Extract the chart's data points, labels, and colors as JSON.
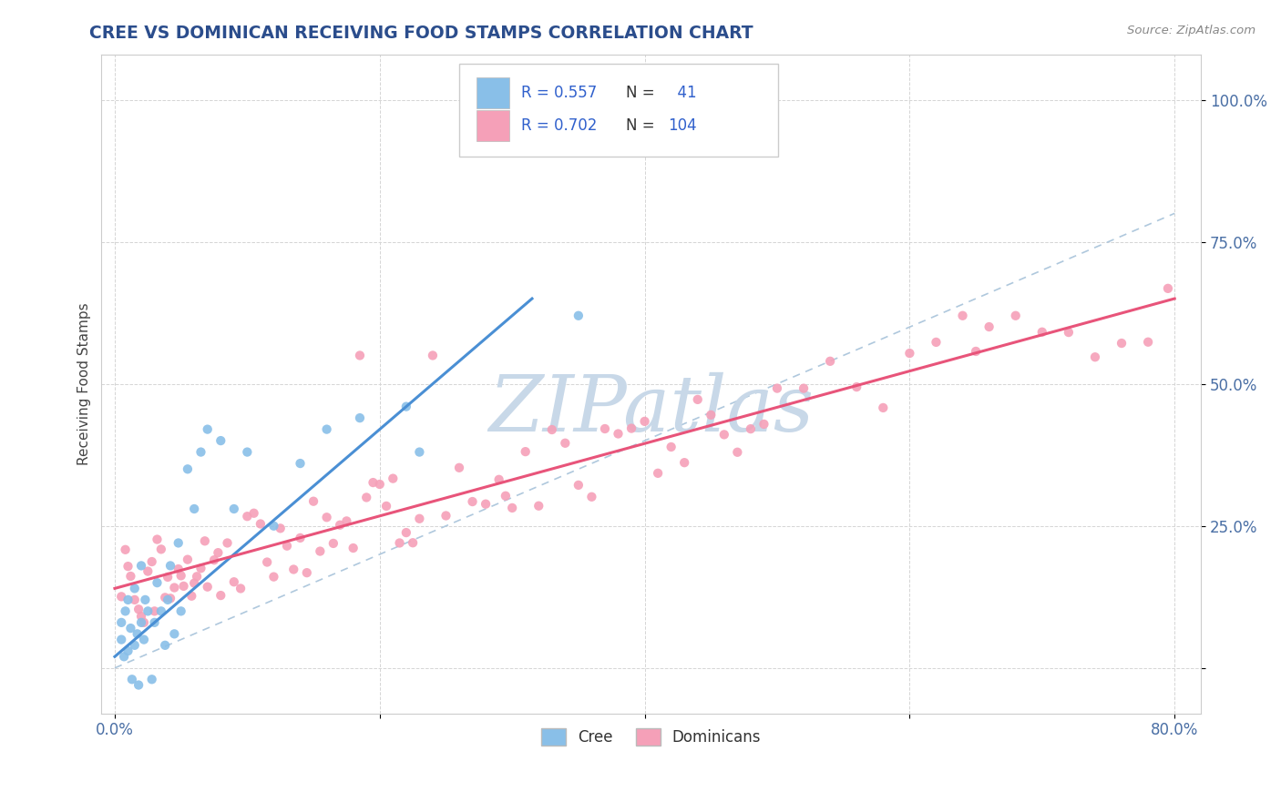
{
  "title": "CREE VS DOMINICAN RECEIVING FOOD STAMPS CORRELATION CHART",
  "source": "Source: ZipAtlas.com",
  "ylabel": "Receiving Food Stamps",
  "xlim": [
    -0.01,
    0.82
  ],
  "ylim": [
    -0.08,
    1.08
  ],
  "xticks": [
    0.0,
    0.2,
    0.4,
    0.6,
    0.8
  ],
  "xticklabels": [
    "0.0%",
    "",
    "",
    "",
    "80.0%"
  ],
  "yticks": [
    0.0,
    0.25,
    0.5,
    0.75,
    1.0
  ],
  "yticklabels_right": [
    "",
    "25.0%",
    "50.0%",
    "75.0%",
    "100.0%"
  ],
  "cree_color": "#89bfe8",
  "dominican_color": "#f5a0b8",
  "cree_line_color": "#4a8fd4",
  "dominican_line_color": "#e8547a",
  "diagonal_color": "#afc8dd",
  "legend_R_cree": "0.557",
  "legend_N_cree": "41",
  "legend_R_dominican": "0.702",
  "legend_N_dominican": "104",
  "legend_label_cree": "Cree",
  "legend_label_dominican": "Dominicans",
  "title_color": "#2b4d8c",
  "source_color": "#888888",
  "background_color": "#ffffff",
  "grid_color": "#d5d5d5",
  "r_value_color": "#3060cc",
  "n_label_color": "#333333",
  "tick_color": "#4a6fa5",
  "cree_line_start_x": 0.0,
  "cree_line_start_y": 0.02,
  "cree_line_end_x": 0.315,
  "cree_line_end_y": 0.65,
  "dominican_line_start_x": 0.0,
  "dominican_line_start_y": 0.14,
  "dominican_line_end_x": 0.8,
  "dominican_line_end_y": 0.65,
  "watermark_text": "ZIPatlas",
  "watermark_color": "#c8d8e8",
  "scatter_size": 55
}
